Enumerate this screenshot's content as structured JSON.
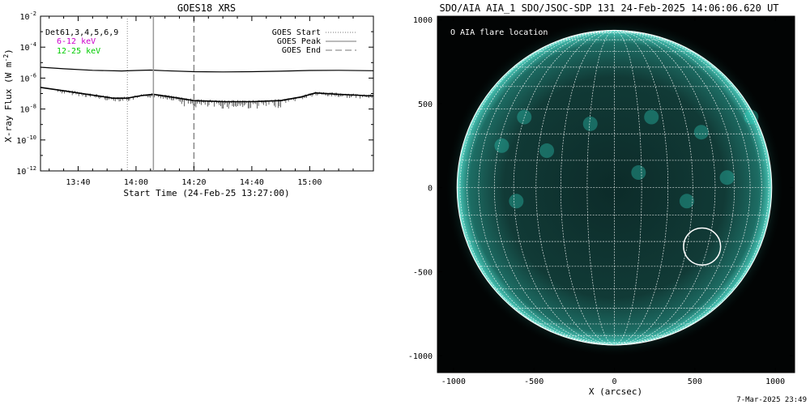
{
  "goes": {
    "title": "GOES18 XRS",
    "ylabel": "X-ray Flux (W m",
    "ylabel_exp": "-2",
    "ylabel_close": ")",
    "xlabel": "Start Time (24-Feb-25 13:27:00)",
    "detector_label": "Det61,3,4,5,6,9",
    "band_low": "6-12 keV",
    "band_high": "12-25 keV",
    "band_low_color": "#cc00cc",
    "band_high_color": "#00cc00",
    "legend": {
      "start": "GOES Start",
      "peak": "GOES Peak",
      "end": "GOES End"
    }
  },
  "chart_data": [
    {
      "type": "line",
      "title": "GOES18 XRS",
      "xlabel": "Start Time (24-Feb-25 13:27:00)",
      "ylabel": "X-ray Flux (W m^-2)",
      "y_scale": "log",
      "ylim": [
        1e-12,
        0.01
      ],
      "xlim": [
        "13:27",
        "15:22"
      ],
      "x_ticks": [
        "13:40",
        "14:00",
        "14:20",
        "14:40",
        "15:00"
      ],
      "y_ticks": [
        {
          "base": "10",
          "exp": "-12",
          "value": 1e-12
        },
        {
          "base": "10",
          "exp": "-10",
          "value": 1e-10
        },
        {
          "base": "10",
          "exp": "-8",
          "value": 1e-08
        },
        {
          "base": "10",
          "exp": "-6",
          "value": 1e-06
        },
        {
          "base": "10",
          "exp": "-4",
          "value": 0.0001
        },
        {
          "base": "10",
          "exp": "-2",
          "value": 0.01
        }
      ],
      "grid": false,
      "legend_position": "top-right",
      "markers": {
        "start": "13:57",
        "peak": "14:06",
        "end": "14:20"
      },
      "series": [
        {
          "name": "6-12 keV",
          "x": [
            "13:27",
            "13:35",
            "13:45",
            "13:55",
            "14:00",
            "14:05",
            "14:10",
            "14:20",
            "14:30",
            "14:40",
            "14:50",
            "15:00",
            "15:10",
            "15:22"
          ],
          "y": [
            5e-06,
            4e-06,
            3.2e-06,
            2.9e-06,
            3.1e-06,
            3.3e-06,
            3e-06,
            2.6e-06,
            2.5e-06,
            2.6e-06,
            2.8e-06,
            3.1e-06,
            3.2e-06,
            3e-06
          ]
        },
        {
          "name": "12-25 keV",
          "x": [
            "13:27",
            "13:35",
            "13:45",
            "13:52",
            "13:57",
            "14:02",
            "14:06",
            "14:12",
            "14:20",
            "14:30",
            "14:40",
            "14:50",
            "14:57",
            "15:02",
            "15:10",
            "15:22"
          ],
          "y": [
            2.5e-07,
            1.5e-07,
            8e-08,
            5e-08,
            5e-08,
            7.5e-08,
            9e-08,
            6e-08,
            3.5e-08,
            3e-08,
            3e-08,
            3.5e-08,
            6e-08,
            1.1e-07,
            9e-08,
            7e-08
          ]
        }
      ]
    },
    {
      "type": "scatter",
      "title": "SDO/AIA AIA_1 SDO/JSOC-SDP 131 24-Feb-2025 14:06:06.620 UT",
      "xlabel": "X (arcsec)",
      "ylabel": "",
      "xlim": [
        -1100,
        1120
      ],
      "ylim": [
        -1100,
        1020
      ],
      "x_ticks": [
        "-1000",
        "-500",
        "0",
        "500",
        "1000"
      ],
      "y_ticks": [
        "1000",
        "500",
        "0",
        "-500",
        "-1000"
      ],
      "x_tick_values": [
        -1000,
        -500,
        0,
        500,
        1000
      ],
      "y_tick_values": [
        1000,
        500,
        0,
        -500,
        -1000
      ],
      "grid": "heliographic 10 deg",
      "solar_radius_arcsec": 978,
      "colormap_color": "#2fd8c4",
      "legend_position": "top-left",
      "series": [
        {
          "name": "AIA flare location",
          "x": [
            545
          ],
          "y": [
            -350
          ],
          "radius_arcsec": 115
        }
      ]
    }
  ],
  "aia": {
    "title": "SDO/AIA AIA_1 SDO/JSOC-SDP 131 24-Feb-2025 14:06:06.620 UT",
    "legend_label": "O AIA flare location",
    "xlabel": "X (arcsec)"
  },
  "footer": {
    "timestamp": "7-Mar-2025 23:49"
  }
}
